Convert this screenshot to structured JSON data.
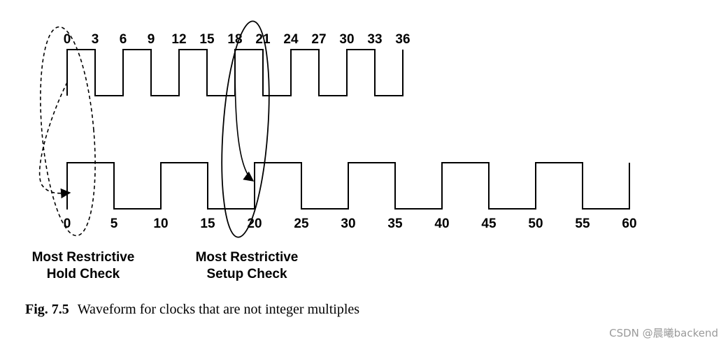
{
  "top_clock": {
    "period": 6,
    "high_time": 3,
    "end": 36,
    "tick_labels": [
      "0",
      "3",
      "6",
      "9",
      "12",
      "15",
      "18",
      "21",
      "24",
      "27",
      "30",
      "33",
      "36"
    ]
  },
  "bottom_clock": {
    "period": 10,
    "high_time": 5,
    "end": 60,
    "tick_labels": [
      "0",
      "5",
      "10",
      "15",
      "20",
      "25",
      "30",
      "35",
      "40",
      "45",
      "50",
      "55",
      "60"
    ]
  },
  "checks": {
    "hold_label_line1": "Most Restrictive",
    "hold_label_line2": "Hold Check",
    "hold_launch_time": 0,
    "hold_capture_time": 0,
    "setup_label_line1": "Most Restrictive",
    "setup_label_line2": "Setup Check",
    "setup_launch_time": 18,
    "setup_capture_time": 20
  },
  "caption": {
    "figure_number": "Fig. 7.5",
    "text": "Waveform for clocks that are not integer multiples"
  },
  "watermark": "CSDN @晨曦backend"
}
